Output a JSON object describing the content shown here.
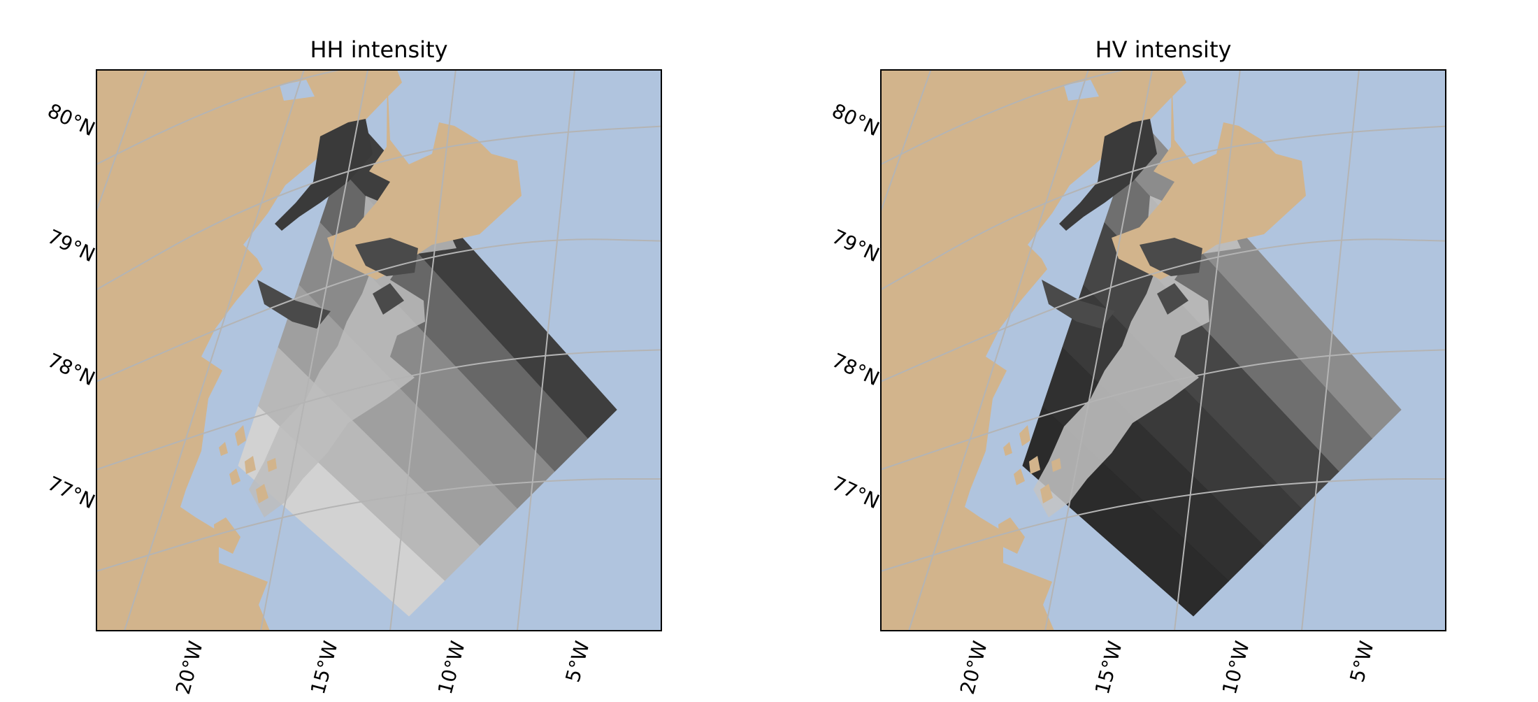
{
  "figure": {
    "panels": [
      {
        "id": "hh",
        "title": "HH intensity",
        "bands": [
          "#3e3e3e",
          "#676767",
          "#8a8a8a",
          "#9f9f9f",
          "#b8b8b8",
          "#d2d2d2"
        ]
      },
      {
        "id": "hv",
        "title": "HV intensity",
        "bands": [
          "#8c8c8c",
          "#6f6f6f",
          "#464646",
          "#3a3a3a",
          "#303030",
          "#2b2b2b"
        ]
      }
    ],
    "latitude_labels": [
      "80°N",
      "79°N",
      "78°N",
      "77°N"
    ],
    "longitude_labels": [
      "20°W",
      "15°W",
      "10°W",
      "5°W"
    ]
  },
  "colors": {
    "land": "#d2b48c",
    "ocean": "#b0c4de",
    "graticule": "#b4b4b4",
    "frame": "#000000"
  }
}
